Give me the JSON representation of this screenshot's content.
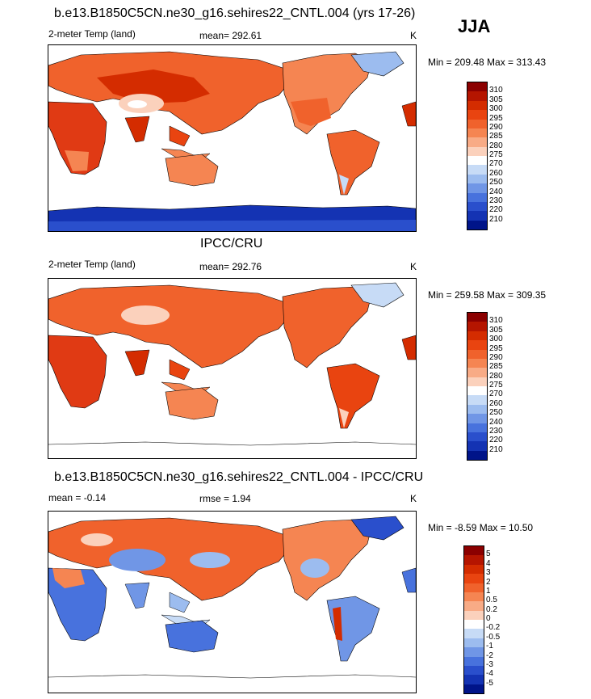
{
  "season": "JJA",
  "panels": [
    {
      "title": "b.e13.B1850C5CN.ne30_g16.sehires22_CNTL.004 (yrs 17-26)",
      "left_label": "2-meter Temp (land)",
      "stat_text": "mean= 292.61",
      "unit": "K",
      "minmax": "Min = 209.48 Max = 313.43",
      "colorbar": {
        "levels": [
          "310",
          "305",
          "300",
          "295",
          "290",
          "285",
          "280",
          "275",
          "270",
          "260",
          "250",
          "240",
          "230",
          "220",
          "210"
        ],
        "colors": [
          "#8b0000",
          "#b51500",
          "#d42c00",
          "#e94410",
          "#f0622c",
          "#f58552",
          "#f8ab86",
          "#fbd1bc",
          "#ffffff",
          "#c7dbf6",
          "#9cbcef",
          "#7096e6",
          "#4872dd",
          "#2a4fcc",
          "#1433b3",
          "#001489"
        ]
      }
    },
    {
      "title": "IPCC/CRU",
      "left_label": "2-meter Temp (land)",
      "stat_text": "mean= 292.76",
      "unit": "K",
      "minmax": "Min = 259.58 Max = 309.35",
      "colorbar": {
        "levels": [
          "310",
          "305",
          "300",
          "295",
          "290",
          "285",
          "280",
          "275",
          "270",
          "260",
          "250",
          "240",
          "230",
          "220",
          "210"
        ],
        "colors": [
          "#8b0000",
          "#b51500",
          "#d42c00",
          "#e94410",
          "#f0622c",
          "#f58552",
          "#f8ab86",
          "#fbd1bc",
          "#ffffff",
          "#c7dbf6",
          "#9cbcef",
          "#7096e6",
          "#4872dd",
          "#2a4fcc",
          "#1433b3",
          "#001489"
        ]
      }
    },
    {
      "title": "b.e13.B1850C5CN.ne30_g16.sehires22_CNTL.004 - IPCC/CRU",
      "left_label": "mean =  -0.14",
      "stat_text": "rmse =   1.94",
      "unit": "K",
      "minmax": "Min =  -8.59 Max =  10.50",
      "colorbar": {
        "levels": [
          "5",
          "4",
          "3",
          "2",
          "1",
          "0.5",
          "0.2",
          "0",
          "-0.2",
          "-0.5",
          "-1",
          "-2",
          "-3",
          "-4",
          "-5"
        ],
        "colors": [
          "#8b0000",
          "#b51500",
          "#d42c00",
          "#e94410",
          "#f0622c",
          "#f58552",
          "#f8ab86",
          "#fbd1bc",
          "#ffffff",
          "#c7dbf6",
          "#9cbcef",
          "#7096e6",
          "#4872dd",
          "#2a4fcc",
          "#1433b3",
          "#001489"
        ]
      }
    }
  ],
  "chart_data": [
    {
      "type": "heatmap",
      "title": "b.e13.B1850C5CN.ne30_g16.sehires22_CNTL.004 (yrs 17-26)",
      "variable": "2-meter Temp (land)",
      "unit": "K",
      "mean": 292.61,
      "min": 209.48,
      "max": 313.43,
      "contour_levels": [
        210,
        220,
        230,
        240,
        250,
        260,
        270,
        275,
        280,
        285,
        290,
        295,
        300,
        305,
        310
      ]
    },
    {
      "type": "heatmap",
      "title": "IPCC/CRU",
      "variable": "2-meter Temp (land)",
      "unit": "K",
      "mean": 292.76,
      "min": 259.58,
      "max": 309.35,
      "contour_levels": [
        210,
        220,
        230,
        240,
        250,
        260,
        270,
        275,
        280,
        285,
        290,
        295,
        300,
        305,
        310
      ]
    },
    {
      "type": "heatmap",
      "title": "b.e13.B1850C5CN.ne30_g16.sehires22_CNTL.004 - IPCC/CRU",
      "unit": "K",
      "mean": -0.14,
      "rmse": 1.94,
      "min": -8.59,
      "max": 10.5,
      "contour_levels": [
        -5,
        -4,
        -3,
        -2,
        -1,
        -0.5,
        -0.2,
        0,
        0.2,
        0.5,
        1,
        2,
        3,
        4,
        5
      ]
    }
  ]
}
